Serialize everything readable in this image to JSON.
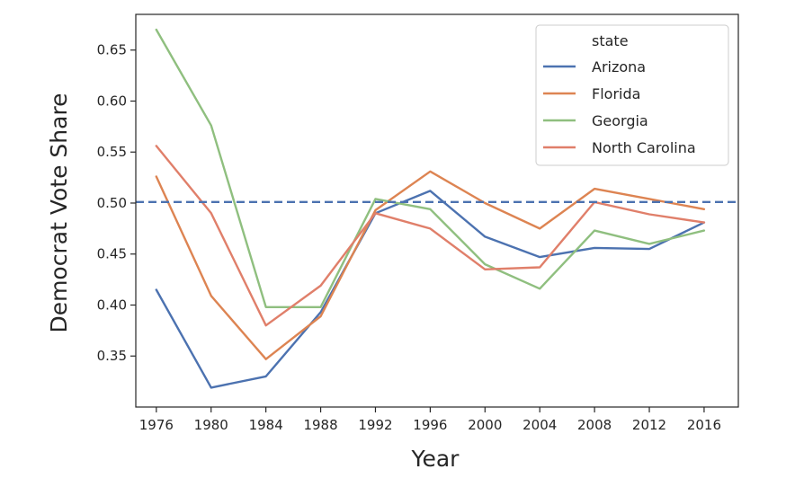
{
  "chart_data": {
    "type": "line",
    "xlabel": "Year",
    "ylabel": "Democrat Vote Share",
    "x": [
      1976,
      1980,
      1984,
      1988,
      1992,
      1996,
      2000,
      2004,
      2008,
      2012,
      2016
    ],
    "xlim": [
      1974.5,
      2018.5
    ],
    "ylim": [
      0.3,
      0.685
    ],
    "yticks": [
      "0.35",
      "0.40",
      "0.45",
      "0.50",
      "0.55",
      "0.60",
      "0.65"
    ],
    "xticks": [
      "1976",
      "1980",
      "1984",
      "1988",
      "1992",
      "1996",
      "2000",
      "2004",
      "2008",
      "2012",
      "2016"
    ],
    "legend": {
      "title": "state",
      "placement": "upper right"
    },
    "reference_line": {
      "y": 0.501,
      "style": "dashed",
      "color": "#4c72b0"
    },
    "grid": false,
    "series": [
      {
        "name": "Arizona",
        "color": "#4c72b0",
        "values": [
          0.415,
          0.319,
          0.33,
          0.393,
          0.49,
          0.512,
          0.467,
          0.447,
          0.456,
          0.455,
          0.481
        ]
      },
      {
        "name": "Florida",
        "color": "#dd8452",
        "values": [
          0.526,
          0.409,
          0.347,
          0.389,
          0.493,
          0.531,
          0.5,
          0.475,
          0.514,
          0.504,
          0.494
        ]
      },
      {
        "name": "Georgia",
        "color": "#8fbf7f",
        "values": [
          0.67,
          0.576,
          0.398,
          0.398,
          0.504,
          0.494,
          0.44,
          0.416,
          0.473,
          0.46,
          0.473
        ]
      },
      {
        "name": "North Carolina",
        "color": "#e07f6a",
        "values": [
          0.556,
          0.49,
          0.38,
          0.419,
          0.49,
          0.475,
          0.435,
          0.437,
          0.501,
          0.489,
          0.481
        ]
      }
    ]
  }
}
